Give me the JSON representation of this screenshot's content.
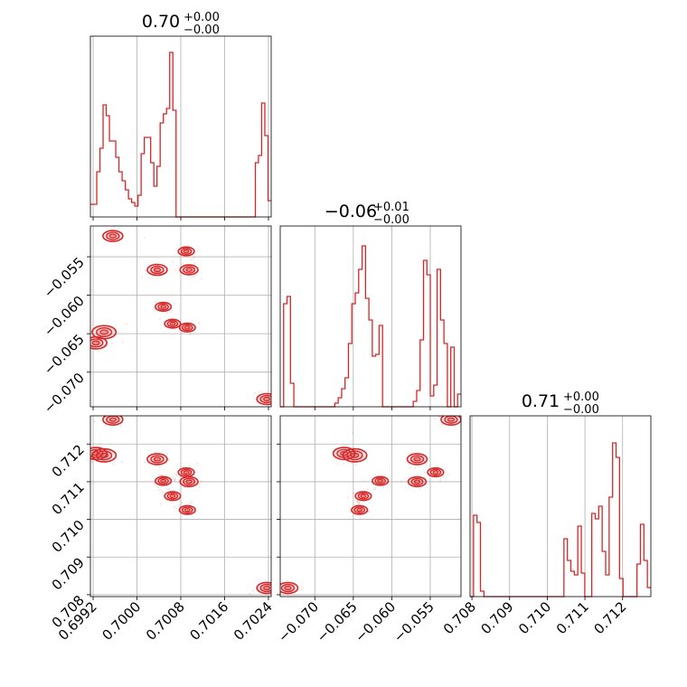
{
  "chart_data": {
    "type": "corner",
    "color": "#d62728",
    "grid": true,
    "parameters": [
      {
        "range": [
          0.69915,
          0.70245
        ],
        "ticks": [
          0.6992,
          0.7,
          0.7008,
          0.7016,
          0.7024
        ],
        "tick_labels": [
          "0.6992",
          "0.7000",
          "0.7008",
          "0.7016",
          "0.7024"
        ],
        "title_value": "0.70",
        "title_plus": "+0.00",
        "title_minus": "−0.00"
      },
      {
        "range": [
          -0.0745,
          -0.051
        ],
        "ticks": [
          -0.07,
          -0.065,
          -0.06,
          -0.055
        ],
        "tick_labels": [
          "−0.070",
          "−0.065",
          "−0.060",
          "−0.055"
        ],
        "title_value": "−0.06",
        "title_plus": "+0.01",
        "title_minus": "−0.00"
      },
      {
        "range": [
          0.70795,
          0.71275
        ],
        "ticks": [
          0.708,
          0.709,
          0.71,
          0.711,
          0.712
        ],
        "tick_labels": [
          "0.708",
          "0.709",
          "0.710",
          "0.711",
          "0.712"
        ],
        "title_value": "0.71",
        "title_plus": "+0.00",
        "title_minus": "−0.00"
      }
    ],
    "histograms": [
      {
        "param": 0,
        "density": [
          0.07,
          0.07,
          0.25,
          0.38,
          0.62,
          0.56,
          0.42,
          0.42,
          0.33,
          0.25,
          0.2,
          0.15,
          0.1,
          0.08,
          0.06,
          0.12,
          0.35,
          0.44,
          0.44,
          0.3,
          0.17,
          0.28,
          0.52,
          0.57,
          0.6,
          0.91,
          0.59,
          0.0,
          0.0,
          0.0,
          0.0,
          0.0,
          0.0,
          0.0,
          0.0,
          0.0,
          0.0,
          0.0,
          0.0,
          0.0,
          0.0,
          0.0,
          0.0,
          0.0,
          0.0,
          0.0,
          0.0,
          0.0,
          0.0,
          0.0,
          0.0,
          0.0,
          0.3,
          0.34,
          0.63,
          0.45,
          0.09
        ]
      },
      {
        "param": 1,
        "density": [
          0.0,
          0.57,
          0.61,
          0.13,
          0.0,
          0.0,
          0.0,
          0.0,
          0.0,
          0.0,
          0.0,
          0.0,
          0.0,
          0.0,
          0.0,
          0.0,
          0.02,
          0.05,
          0.1,
          0.16,
          0.35,
          0.57,
          0.63,
          0.76,
          0.89,
          0.6,
          0.48,
          0.28,
          0.29,
          0.45,
          0.0,
          0.0,
          0.0,
          0.0,
          0.0,
          0.0,
          0.0,
          0.0,
          0.0,
          0.03,
          0.09,
          0.37,
          0.81,
          0.73,
          0.06,
          0.12,
          0.76,
          0.48,
          0.35,
          0.0,
          0.33,
          0.0,
          0.07
        ]
      },
      {
        "param": 2,
        "density": [
          0.0,
          0.45,
          0.41,
          0.03,
          0.0,
          0.0,
          0.0,
          0.0,
          0.0,
          0.0,
          0.0,
          0.0,
          0.0,
          0.0,
          0.0,
          0.0,
          0.0,
          0.0,
          0.0,
          0.0,
          0.0,
          0.0,
          0.0,
          0.0,
          0.0,
          0.0,
          0.0,
          0.32,
          0.2,
          0.14,
          0.12,
          0.39,
          0.13,
          0.0,
          0.0,
          0.46,
          0.43,
          0.5,
          0.25,
          0.12,
          0.55,
          0.85,
          0.77,
          0.1,
          0.0,
          0.0,
          0.0,
          0.0,
          0.18,
          0.4,
          0.2,
          0.05
        ]
      }
    ],
    "clusters": [
      {
        "p0": 0.69956,
        "p1": -0.0523,
        "p2": 0.71265,
        "w": 1.0
      },
      {
        "p0": 0.70037,
        "p1": -0.0567,
        "p2": 0.7116,
        "w": 1.0
      },
      {
        "p0": 0.7009,
        "p1": -0.0543,
        "p2": 0.71125,
        "w": 0.8
      },
      {
        "p0": 0.70095,
        "p1": -0.0567,
        "p2": 0.711,
        "w": 0.9
      },
      {
        "p0": 0.70048,
        "p1": -0.0615,
        "p2": 0.71102,
        "w": 0.8
      },
      {
        "p0": 0.70065,
        "p1": -0.0637,
        "p2": 0.71062,
        "w": 0.8
      },
      {
        "p0": 0.70092,
        "p1": -0.0642,
        "p2": 0.71025,
        "w": 0.8
      },
      {
        "p0": 0.6994,
        "p1": -0.0648,
        "p2": 0.7117,
        "w": 1.2
      },
      {
        "p0": 0.69925,
        "p1": -0.0662,
        "p2": 0.71175,
        "w": 1.1
      },
      {
        "p0": 0.70237,
        "p1": -0.0735,
        "p2": 0.70818,
        "w": 1.0
      }
    ]
  }
}
